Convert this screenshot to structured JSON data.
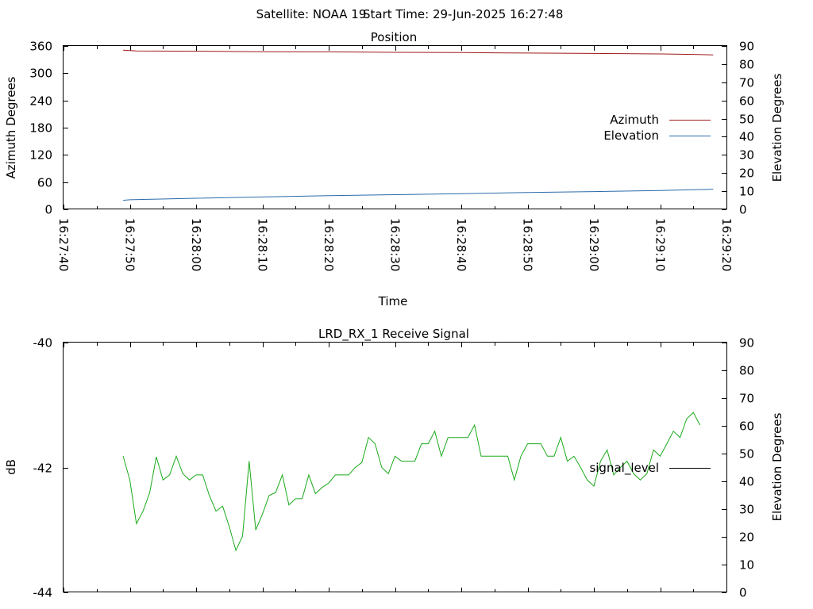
{
  "header": {
    "satellite_text": "Satellite: NOAA 19",
    "start_time_text": "Start Time: 29-Jun-2025 16:27:48"
  },
  "colors": {
    "azimuth": "#a01818",
    "elevation": "#2a6aa8",
    "signal": "#1aaa1a",
    "signal_legend_line": "#000000"
  },
  "chart_data": [
    {
      "type": "line",
      "title": "Position",
      "xlabel": "Time",
      "ylabel": "Azimuth Degrees",
      "y2label": "Elevation Degrees",
      "xlim": [
        "16:27:40",
        "16:29:20"
      ],
      "x_ticks": [
        "16:27:40",
        "16:27:50",
        "16:28:00",
        "16:28:10",
        "16:28:20",
        "16:28:30",
        "16:28:40",
        "16:28:50",
        "16:29:00",
        "16:29:10",
        "16:29:20"
      ],
      "ylim": [
        0,
        360
      ],
      "y_ticks": [
        "0",
        "60",
        "120",
        "180",
        "240",
        "300",
        "360"
      ],
      "y2lim": [
        0,
        90
      ],
      "y2_ticks": [
        "0",
        "10",
        "20",
        "30",
        "40",
        "50",
        "60",
        "70",
        "80",
        "90"
      ],
      "legend_position": "right",
      "series": [
        {
          "name": "Azimuth",
          "axis": "y",
          "points": [
            [
              "16:27:49",
              351
            ],
            [
              "16:27:51",
              349
            ],
            [
              "16:28:00",
              348.5
            ],
            [
              "16:28:10",
              347.5
            ],
            [
              "16:28:20",
              347
            ],
            [
              "16:28:30",
              346
            ],
            [
              "16:28:40",
              345.5
            ],
            [
              "16:28:50",
              344.5
            ],
            [
              "16:29:00",
              343.5
            ],
            [
              "16:29:10",
              342.5
            ],
            [
              "16:29:15",
              341.5
            ],
            [
              "16:29:18",
              340.5
            ]
          ]
        },
        {
          "name": "Elevation",
          "axis": "y2",
          "points": [
            [
              "16:27:49",
              5
            ],
            [
              "16:27:50",
              5.3
            ],
            [
              "16:28:00",
              6.1
            ],
            [
              "16:28:10",
              6.8
            ],
            [
              "16:28:20",
              7.5
            ],
            [
              "16:28:30",
              8.1
            ],
            [
              "16:28:40",
              8.6
            ],
            [
              "16:28:50",
              9.3
            ],
            [
              "16:29:00",
              9.8
            ],
            [
              "16:29:10",
              10.4
            ],
            [
              "16:29:15",
              10.8
            ],
            [
              "16:29:18",
              11.1
            ]
          ]
        }
      ]
    },
    {
      "type": "line",
      "title": "LRD_RX_1 Receive Signal",
      "xlabel": "",
      "ylabel": "dB",
      "y2label": "Elevation Degrees",
      "xlim": [
        "16:27:40",
        "16:29:20"
      ],
      "ylim": [
        -44,
        -40
      ],
      "y_ticks": [
        "-44",
        "-42",
        "-40"
      ],
      "y2lim": [
        0,
        90
      ],
      "y2_ticks": [
        "0",
        "10",
        "20",
        "30",
        "40",
        "50",
        "60",
        "70",
        "80",
        "90"
      ],
      "legend_position": "right",
      "series": [
        {
          "name": "signal_level",
          "axis": "y",
          "points": [
            [
              "16:27:49",
              -41.82
            ],
            [
              "16:27:50",
              -42.2
            ],
            [
              "16:27:51",
              -42.9
            ],
            [
              "16:27:52",
              -42.7
            ],
            [
              "16:27:53",
              -42.4
            ],
            [
              "16:27:54",
              -41.83
            ],
            [
              "16:27:55",
              -42.2
            ],
            [
              "16:27:56",
              -42.12
            ],
            [
              "16:27:57",
              -41.82
            ],
            [
              "16:27:58",
              -42.1
            ],
            [
              "16:27:59",
              -42.2
            ],
            [
              "16:28:00",
              -42.12
            ],
            [
              "16:28:01",
              -42.12
            ],
            [
              "16:28:02",
              -42.45
            ],
            [
              "16:28:03",
              -42.7
            ],
            [
              "16:28:04",
              -42.62
            ],
            [
              "16:28:05",
              -42.95
            ],
            [
              "16:28:06",
              -43.33
            ],
            [
              "16:28:07",
              -43.1
            ],
            [
              "16:28:08",
              -41.9
            ],
            [
              "16:28:09",
              -43.0
            ],
            [
              "16:28:10",
              -42.75
            ],
            [
              "16:28:11",
              -42.45
            ],
            [
              "16:28:12",
              -42.4
            ],
            [
              "16:28:13",
              -42.12
            ],
            [
              "16:28:14",
              -42.6
            ],
            [
              "16:28:15",
              -42.5
            ],
            [
              "16:28:16",
              -42.5
            ],
            [
              "16:28:17",
              -42.12
            ],
            [
              "16:28:18",
              -42.42
            ],
            [
              "16:28:19",
              -42.32
            ],
            [
              "16:28:20",
              -42.25
            ],
            [
              "16:28:21",
              -42.12
            ],
            [
              "16:28:22",
              -42.12
            ],
            [
              "16:28:23",
              -42.12
            ],
            [
              "16:28:24",
              -42.0
            ],
            [
              "16:28:25",
              -41.92
            ],
            [
              "16:28:26",
              -41.52
            ],
            [
              "16:28:27",
              -41.62
            ],
            [
              "16:28:28",
              -42.0
            ],
            [
              "16:28:29",
              -42.1
            ],
            [
              "16:28:30",
              -41.82
            ],
            [
              "16:28:31",
              -41.9
            ],
            [
              "16:28:32",
              -41.9
            ],
            [
              "16:28:33",
              -41.9
            ],
            [
              "16:28:34",
              -41.62
            ],
            [
              "16:28:35",
              -41.62
            ],
            [
              "16:28:36",
              -41.42
            ],
            [
              "16:28:37",
              -41.82
            ],
            [
              "16:28:38",
              -41.52
            ],
            [
              "16:28:39",
              -41.52
            ],
            [
              "16:28:40",
              -41.52
            ],
            [
              "16:28:41",
              -41.52
            ],
            [
              "16:28:42",
              -41.32
            ],
            [
              "16:28:43",
              -41.82
            ],
            [
              "16:28:47",
              -41.82
            ],
            [
              "16:28:48",
              -42.2
            ],
            [
              "16:28:49",
              -41.82
            ],
            [
              "16:28:50",
              -41.62
            ],
            [
              "16:28:52",
              -41.62
            ],
            [
              "16:28:53",
              -41.82
            ],
            [
              "16:28:54",
              -41.82
            ],
            [
              "16:28:55",
              -41.52
            ],
            [
              "16:28:56",
              -41.9
            ],
            [
              "16:28:57",
              -41.82
            ],
            [
              "16:28:58",
              -42.0
            ],
            [
              "16:28:59",
              -42.2
            ],
            [
              "16:29:00",
              -42.3
            ],
            [
              "16:29:01",
              -41.9
            ],
            [
              "16:29:02",
              -41.72
            ],
            [
              "16:29:03",
              -42.12
            ],
            [
              "16:29:04",
              -42.0
            ],
            [
              "16:29:05",
              -41.9
            ],
            [
              "16:29:06",
              -42.1
            ],
            [
              "16:29:07",
              -42.2
            ],
            [
              "16:29:08",
              -42.1
            ],
            [
              "16:29:09",
              -41.72
            ],
            [
              "16:29:10",
              -41.82
            ],
            [
              "16:29:11",
              -41.62
            ],
            [
              "16:29:12",
              -41.42
            ],
            [
              "16:29:13",
              -41.52
            ],
            [
              "16:29:14",
              -41.22
            ],
            [
              "16:29:15",
              -41.12
            ],
            [
              "16:29:16",
              -41.32
            ]
          ]
        }
      ]
    }
  ]
}
